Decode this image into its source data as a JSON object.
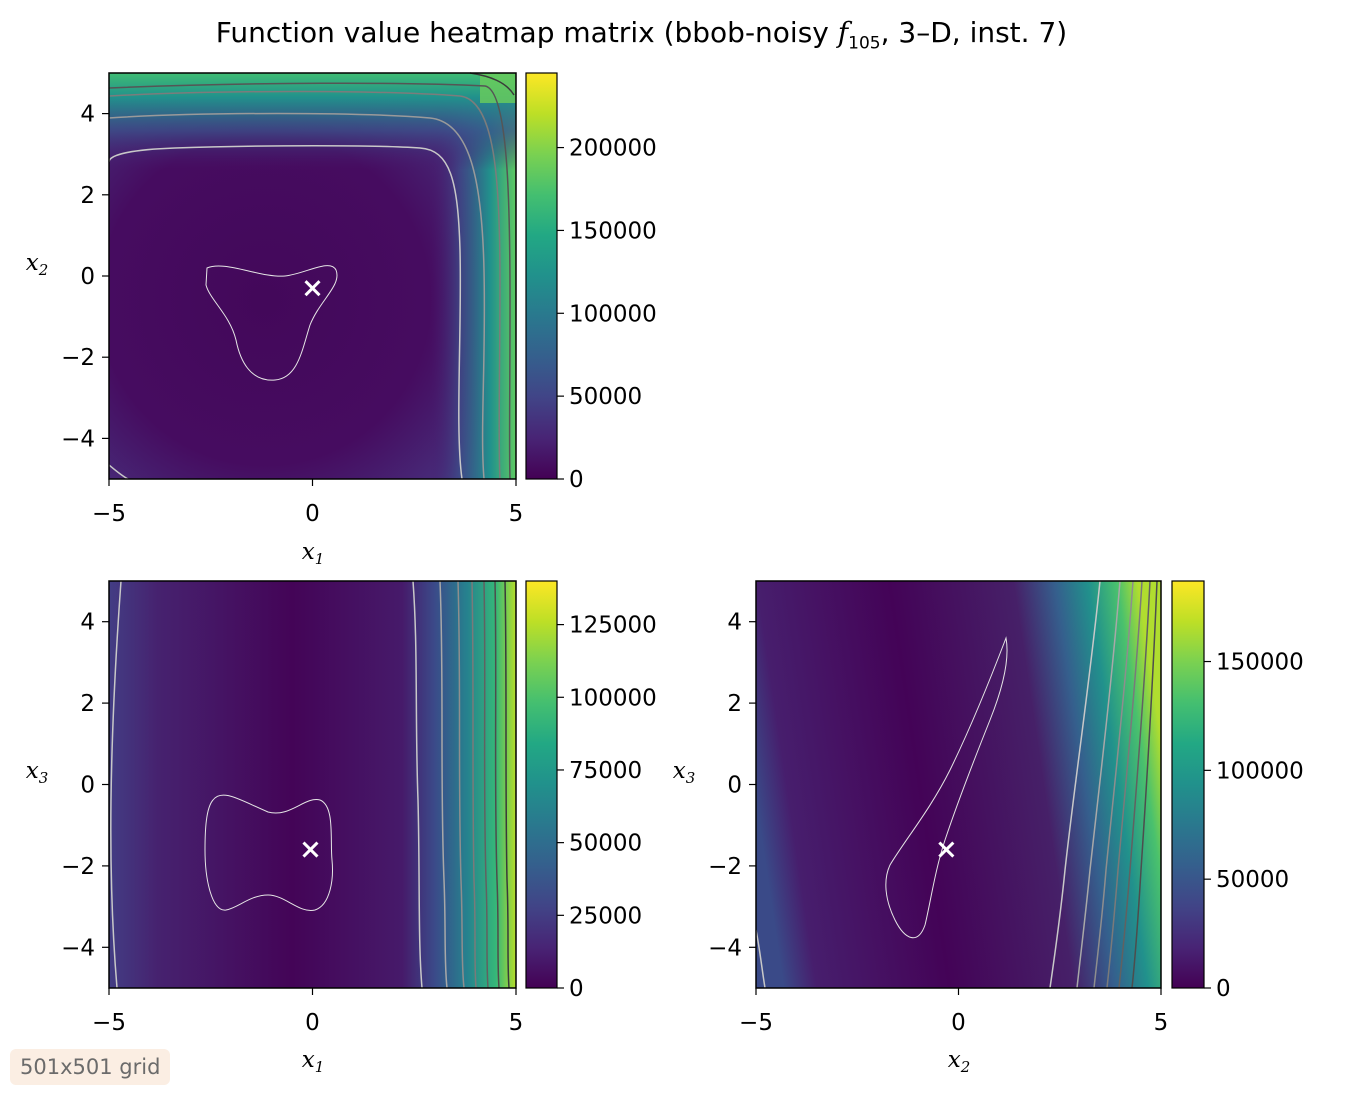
{
  "title_parts": {
    "prefix": "Function value heatmap matrix (bbob-noisy ",
    "func_symbol": "f",
    "func_sub": "105",
    "suffix": ", 3–D, inst. 7)"
  },
  "badge": "501x501 grid",
  "colormap": "viridis",
  "marker_color": "#ffffff",
  "chart_data": [
    {
      "type": "heatmap",
      "xlabel": "x1",
      "ylabel": "x2",
      "xlim": [
        -5,
        5
      ],
      "ylim": [
        -5,
        5
      ],
      "x_ticks": [
        -5,
        0,
        5
      ],
      "y_ticks": [
        -4,
        -2,
        0,
        2,
        4
      ],
      "colorbar": {
        "min": 0,
        "max": 245000,
        "ticks": [
          0,
          50000,
          100000,
          150000,
          200000
        ]
      },
      "optimum_marker": {
        "x": 0.0,
        "y": -0.3
      },
      "grid": false
    },
    {
      "type": "heatmap",
      "xlabel": "x1",
      "ylabel": "x3",
      "xlim": [
        -5,
        5
      ],
      "ylim": [
        -5,
        5
      ],
      "x_ticks": [
        -5,
        0,
        5
      ],
      "y_ticks": [
        -4,
        -2,
        0,
        2,
        4
      ],
      "colorbar": {
        "min": 0,
        "max": 140000,
        "ticks": [
          0,
          25000,
          50000,
          75000,
          100000,
          125000
        ]
      },
      "optimum_marker": {
        "x": -0.05,
        "y": -1.6
      },
      "grid": false
    },
    {
      "type": "heatmap",
      "xlabel": "x2",
      "ylabel": "x3",
      "xlim": [
        -5,
        5
      ],
      "ylim": [
        -5,
        5
      ],
      "x_ticks": [
        -5,
        0,
        5
      ],
      "y_ticks": [
        -4,
        -2,
        0,
        2,
        4
      ],
      "colorbar": {
        "min": 0,
        "max": 187000,
        "ticks": [
          0,
          50000,
          100000,
          150000
        ]
      },
      "optimum_marker": {
        "x": -0.3,
        "y": -1.6
      },
      "grid": false
    }
  ]
}
